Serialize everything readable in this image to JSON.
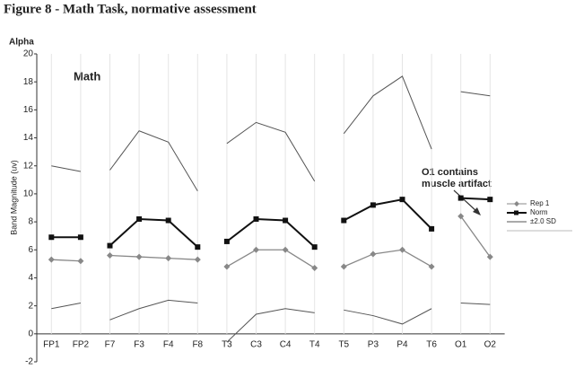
{
  "chart_data": {
    "type": "line",
    "title": "Figure 8 - Math Task, normative assessment",
    "band_label": "Alpha",
    "subtitle": "Math",
    "y_label": "Band Magnitude (uv)",
    "annotation": "O1 contains muscle artifact",
    "categories": [
      "FP1",
      "FP2",
      "F7",
      "F3",
      "F4",
      "F8",
      "T3",
      "C3",
      "C4",
      "T4",
      "T5",
      "P3",
      "P4",
      "T6",
      "O1",
      "O2"
    ],
    "segment_breaks": [
      2,
      6,
      10,
      14
    ],
    "series": [
      {
        "name": "Rep 1",
        "color": "#888888",
        "marker": "diamond",
        "values": [
          5.3,
          5.2,
          5.6,
          5.5,
          5.4,
          5.3,
          4.8,
          6.0,
          6.0,
          4.7,
          4.8,
          5.7,
          6.0,
          4.8,
          8.4,
          5.5
        ]
      },
      {
        "name": "Norm",
        "color": "#111111",
        "marker": "square",
        "values": [
          6.9,
          6.9,
          6.3,
          8.2,
          8.1,
          6.2,
          6.6,
          8.2,
          8.1,
          6.2,
          8.1,
          9.2,
          9.6,
          7.5,
          9.7,
          9.6
        ]
      },
      {
        "name": "±2.0 SD",
        "color": "#555555",
        "marker": "none",
        "upper": [
          12.0,
          11.6,
          11.7,
          14.5,
          13.7,
          10.2,
          13.6,
          15.1,
          14.4,
          10.9,
          14.3,
          17.0,
          18.4,
          13.2,
          17.3,
          17.0
        ],
        "lower": [
          1.8,
          2.2,
          1.0,
          1.8,
          2.4,
          2.2,
          -0.6,
          1.4,
          1.8,
          1.5,
          1.7,
          1.3,
          0.7,
          1.8,
          2.2,
          2.1
        ]
      }
    ],
    "ylim": [
      -2,
      20
    ],
    "yticks": [
      -2,
      0,
      2,
      4,
      6,
      8,
      10,
      12,
      14,
      16,
      18,
      20
    ],
    "grid": true,
    "legend": "right"
  }
}
